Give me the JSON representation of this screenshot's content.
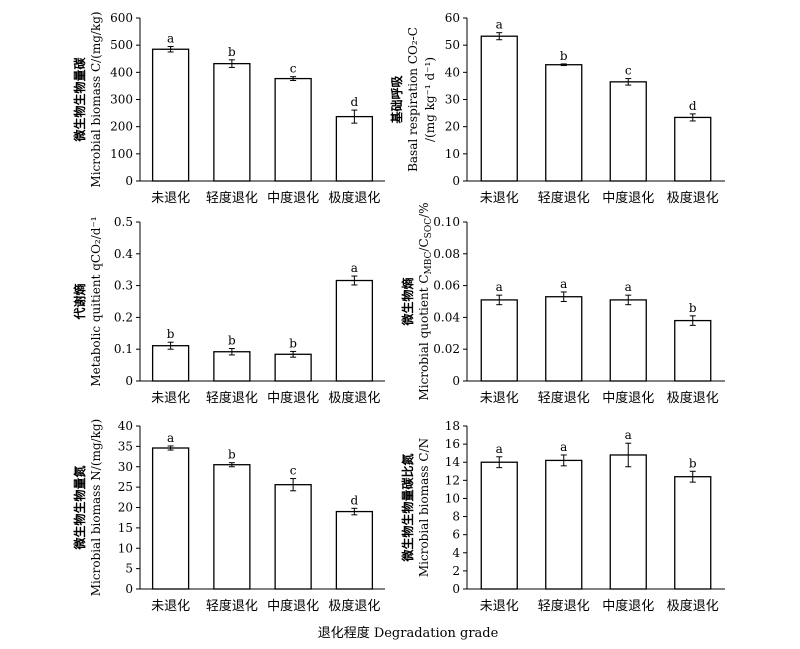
{
  "figure": {
    "shared_xlabel": "退化程度 Degradation grade"
  },
  "chart_data": [
    {
      "type": "bar",
      "categories": [
        "未退化",
        "轻度退化",
        "中度退化",
        "极度退化"
      ],
      "values": [
        485,
        432,
        377,
        237
      ],
      "errors": [
        10,
        14,
        7,
        24
      ],
      "letters": [
        "a",
        "b",
        "c",
        "d"
      ],
      "ylabel_cn": "微生物生物量碳",
      "ylabel_en": "Microbial biomass C/(mg/kg)",
      "ylim": [
        0,
        600
      ],
      "yticks": [
        "0",
        "100",
        "200",
        "300",
        "400",
        "500",
        "600"
      ]
    },
    {
      "type": "bar",
      "categories": [
        "未退化",
        "轻度退化",
        "中度退化",
        "极度退化"
      ],
      "values": [
        53.3,
        42.8,
        36.5,
        23.4
      ],
      "errors": [
        1.3,
        0.3,
        1.2,
        1.3
      ],
      "letters": [
        "a",
        "b",
        "c",
        "d"
      ],
      "ylabel_cn": "基础呼吸",
      "ylabel_en": "Basal respiration CO₂-C",
      "ylabel_en2": "/(mg kg⁻¹ d⁻¹)",
      "ylim": [
        0,
        60
      ],
      "yticks": [
        "0",
        "10",
        "20",
        "30",
        "40",
        "50",
        "60"
      ]
    },
    {
      "type": "bar",
      "categories": [
        "未退化",
        "轻度退化",
        "中度退化",
        "极度退化"
      ],
      "values": [
        0.111,
        0.092,
        0.084,
        0.316
      ],
      "errors": [
        0.011,
        0.01,
        0.009,
        0.014
      ],
      "letters": [
        "b",
        "b",
        "b",
        "a"
      ],
      "ylabel_cn": "代谢熵",
      "ylabel_en": "Metabolic quitient qCO₂/d⁻¹",
      "ylim": [
        0,
        0.5
      ],
      "yticks": [
        "0",
        "0.1",
        "0.2",
        "0.3",
        "0.4",
        "0.5"
      ]
    },
    {
      "type": "bar",
      "categories": [
        "未退化",
        "轻度退化",
        "中度退化",
        "极度退化"
      ],
      "values": [
        0.051,
        0.053,
        0.051,
        0.038
      ],
      "errors": [
        0.003,
        0.003,
        0.003,
        0.003
      ],
      "letters": [
        "a",
        "a",
        "a",
        "b"
      ],
      "ylabel_cn": "微生物熵",
      "ylabel_en": "Microbial quotient C",
      "ylabel_en_sub1": "MBC",
      "ylabel_en_mid": "/C",
      "ylabel_en_sub2": "SOC",
      "ylabel_en_end": "/%",
      "ylim": [
        0,
        0.1
      ],
      "yticks": [
        "0",
        "0.02",
        "0.04",
        "0.06",
        "0.08",
        "0.10"
      ]
    },
    {
      "type": "bar",
      "categories": [
        "未退化",
        "轻度退化",
        "中度退化",
        "极度退化"
      ],
      "values": [
        34.6,
        30.5,
        25.6,
        19.0
      ],
      "errors": [
        0.5,
        0.5,
        1.5,
        0.8
      ],
      "letters": [
        "a",
        "b",
        "c",
        "d"
      ],
      "ylabel_cn": "微生物生物量氮",
      "ylabel_en": "Microbial biomass N/(mg/kg)",
      "ylim": [
        0,
        40
      ],
      "yticks": [
        "0",
        "5",
        "10",
        "15",
        "20",
        "25",
        "30",
        "35",
        "40"
      ]
    },
    {
      "type": "bar",
      "categories": [
        "未退化",
        "轻度退化",
        "中度退化",
        "极度退化"
      ],
      "values": [
        14.0,
        14.2,
        14.8,
        12.4
      ],
      "errors": [
        0.6,
        0.6,
        1.3,
        0.6
      ],
      "letters": [
        "a",
        "a",
        "a",
        "b"
      ],
      "ylabel_cn": "微生物生物量碳比氮",
      "ylabel_en": "Microbial biomass C/N",
      "ylim": [
        0,
        18
      ],
      "yticks": [
        "0",
        "2",
        "4",
        "6",
        "8",
        "10",
        "12",
        "14",
        "16",
        "18"
      ]
    }
  ]
}
